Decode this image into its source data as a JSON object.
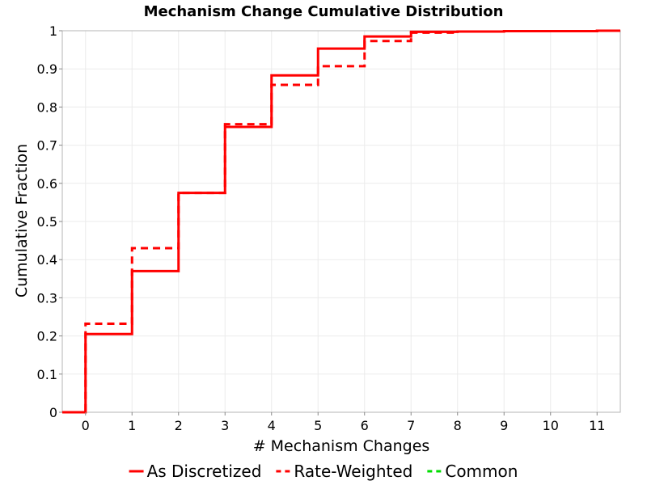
{
  "chart_data": {
    "type": "line",
    "step": true,
    "title": "Mechanism Change Cumulative Distribution",
    "xlabel": "# Mechanism Changes",
    "ylabel": "Cumulative Fraction",
    "xlim": [
      -0.5,
      11.5
    ],
    "ylim": [
      0,
      1
    ],
    "xticks": [
      "0",
      "1",
      "2",
      "3",
      "4",
      "5",
      "6",
      "7",
      "8",
      "9",
      "10",
      "11"
    ],
    "yticks": [
      "0",
      "0.1",
      "0.2",
      "0.3",
      "0.4",
      "0.5",
      "0.6",
      "0.7",
      "0.8",
      "0.9",
      "1"
    ],
    "grid": true,
    "legend_position": "bottom",
    "series": [
      {
        "name": "As Discretized",
        "color": "#ff0000",
        "dash": "solid",
        "x": [
          0,
          1,
          2,
          3,
          4,
          5,
          6,
          7,
          8,
          9,
          10,
          11
        ],
        "y": [
          0.205,
          0.37,
          0.575,
          0.748,
          0.883,
          0.953,
          0.985,
          0.997,
          0.998,
          0.999,
          0.999,
          1.0
        ]
      },
      {
        "name": "Rate-Weighted",
        "color": "#ff0000",
        "dash": "dashed",
        "x": [
          0,
          1,
          2,
          3,
          4,
          5,
          6,
          7,
          8,
          9,
          10,
          11
        ],
        "y": [
          0.232,
          0.43,
          0.575,
          0.755,
          0.858,
          0.907,
          0.973,
          0.995,
          0.998,
          0.999,
          0.999,
          1.0
        ]
      },
      {
        "name": "Common",
        "color": "#00dd00",
        "dash": "dashed",
        "x": [],
        "y": []
      }
    ]
  }
}
